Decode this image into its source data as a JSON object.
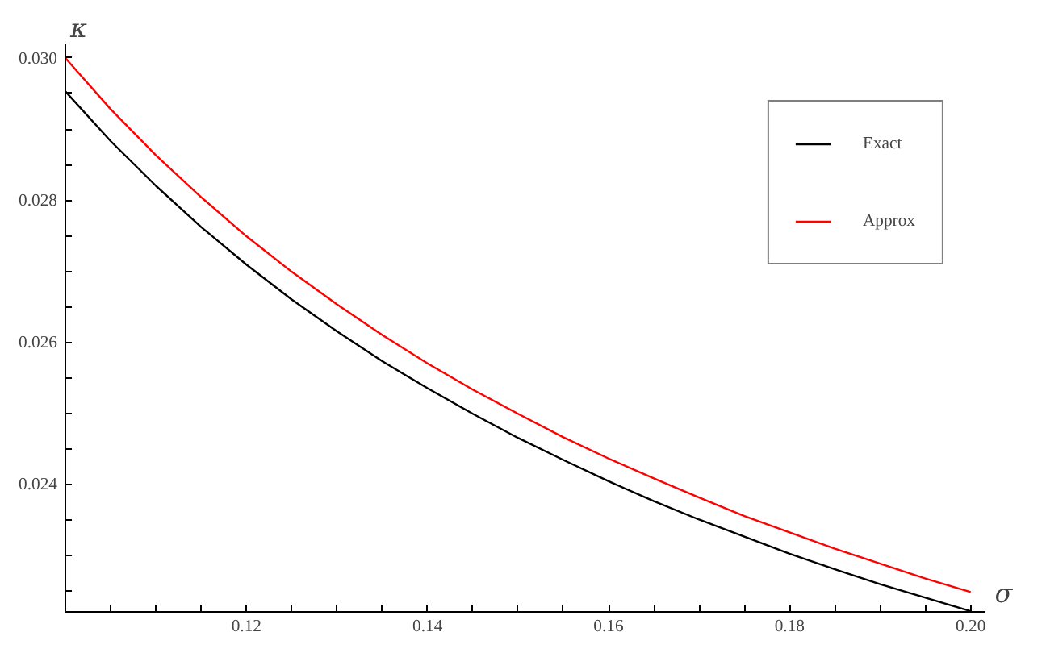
{
  "chart_data": {
    "type": "line",
    "xlabel": "σ",
    "ylabel": "κ",
    "x": [
      0.1,
      0.105,
      0.11,
      0.115,
      0.12,
      0.125,
      0.13,
      0.135,
      0.14,
      0.145,
      0.15,
      0.155,
      0.16,
      0.165,
      0.17,
      0.175,
      0.18,
      0.185,
      0.19,
      0.195,
      0.2
    ],
    "series": [
      {
        "name": "Exact",
        "color": "#000000",
        "values": [
          0.02953,
          0.02883,
          0.0282,
          0.02762,
          0.02709,
          0.0266,
          0.02615,
          0.02573,
          0.02535,
          0.02499,
          0.02465,
          0.02434,
          0.02404,
          0.02376,
          0.0235,
          0.02326,
          0.02302,
          0.0228,
          0.02259,
          0.0224,
          0.02221
        ]
      },
      {
        "name": "Approx",
        "color": "#ff0000",
        "values": [
          0.03,
          0.02928,
          0.02863,
          0.02804,
          0.02749,
          0.02699,
          0.02653,
          0.0261,
          0.0257,
          0.02533,
          0.02499,
          0.02466,
          0.02436,
          0.02408,
          0.02381,
          0.02355,
          0.02332,
          0.02309,
          0.02288,
          0.02267,
          0.02248
        ]
      }
    ],
    "xlim": [
      0.1,
      0.2016
    ],
    "ylim": [
      0.0222,
      0.0302
    ],
    "xticks": [
      {
        "value": 0.1,
        "label": null
      },
      {
        "value": 0.105,
        "label": null
      },
      {
        "value": 0.11,
        "label": null
      },
      {
        "value": 0.115,
        "label": null
      },
      {
        "value": 0.12,
        "label": "0.12"
      },
      {
        "value": 0.125,
        "label": null
      },
      {
        "value": 0.13,
        "label": null
      },
      {
        "value": 0.135,
        "label": null
      },
      {
        "value": 0.14,
        "label": "0.14"
      },
      {
        "value": 0.145,
        "label": null
      },
      {
        "value": 0.15,
        "label": null
      },
      {
        "value": 0.155,
        "label": null
      },
      {
        "value": 0.16,
        "label": "0.16"
      },
      {
        "value": 0.165,
        "label": null
      },
      {
        "value": 0.17,
        "label": null
      },
      {
        "value": 0.175,
        "label": null
      },
      {
        "value": 0.18,
        "label": "0.18"
      },
      {
        "value": 0.185,
        "label": null
      },
      {
        "value": 0.19,
        "label": null
      },
      {
        "value": 0.195,
        "label": null
      },
      {
        "value": 0.2,
        "label": "0.20"
      }
    ],
    "yticks": [
      {
        "value": 0.0225,
        "label": null
      },
      {
        "value": 0.023,
        "label": null
      },
      {
        "value": 0.0235,
        "label": null
      },
      {
        "value": 0.024,
        "label": "0.024"
      },
      {
        "value": 0.0245,
        "label": null
      },
      {
        "value": 0.025,
        "label": null
      },
      {
        "value": 0.0255,
        "label": null
      },
      {
        "value": 0.026,
        "label": "0.026"
      },
      {
        "value": 0.0265,
        "label": null
      },
      {
        "value": 0.027,
        "label": null
      },
      {
        "value": 0.0275,
        "label": null
      },
      {
        "value": 0.028,
        "label": "0.028"
      },
      {
        "value": 0.0285,
        "label": null
      },
      {
        "value": 0.029,
        "label": null
      },
      {
        "value": 0.0295,
        "label": null
      },
      {
        "value": 0.03,
        "label": "0.030"
      }
    ],
    "grid": false,
    "legend": "top right",
    "line_style": "solid",
    "marker": "none"
  }
}
